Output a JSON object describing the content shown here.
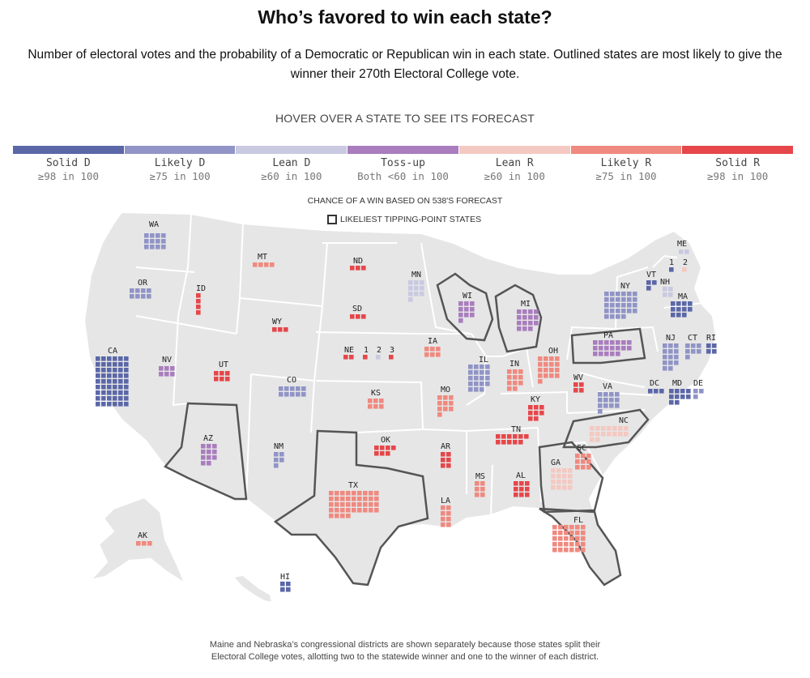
{
  "title": "Who’s favored to win each state?",
  "subtitle": "Number of electoral votes and the probability of a Democratic or Republican win in each state. Outlined states are most likely to give the winner their 270th Electoral College vote.",
  "hover_hint": "HOVER OVER A STATE TO SEE ITS FORECAST",
  "legend": [
    {
      "label": "Solid D",
      "sub": "≥98 in 100",
      "color": "#5b67a7"
    },
    {
      "label": "Likely D",
      "sub": "≥75 in 100",
      "color": "#9094c6"
    },
    {
      "label": "Lean D",
      "sub": "≥60 in 100",
      "color": "#c9c9e1"
    },
    {
      "label": "Toss-up",
      "sub": "Both <60 in 100",
      "color": "#a97dbe"
    },
    {
      "label": "Lean R",
      "sub": "≥60 in 100",
      "color": "#f4c9c2"
    },
    {
      "label": "Likely R",
      "sub": "≥75 in 100",
      "color": "#f0897f"
    },
    {
      "label": "Solid R",
      "sub": "≥98 in 100",
      "color": "#e5474a"
    }
  ],
  "chance_label": "CHANCE OF A WIN BASED ON 538'S FORECAST",
  "tipping_key": "LIKELIEST TIPPING-POINT STATES",
  "footnote": [
    "Maine and Nebraska’s congressional districts are shown separately because those states split their",
    "Electoral College votes, allotting two to the statewide winner and one to the winner of each district."
  ],
  "map_colors": {
    "land": "#e6e6e6",
    "border": "#ffffff",
    "tipping_outline": "#555555"
  },
  "states": [
    {
      "abbr": "WA",
      "ev": 12,
      "rating": "Likely D",
      "tipping": false
    },
    {
      "abbr": "OR",
      "ev": 8,
      "rating": "Likely D",
      "tipping": false
    },
    {
      "abbr": "CA",
      "ev": 54,
      "rating": "Solid D",
      "tipping": false
    },
    {
      "abbr": "NV",
      "ev": 6,
      "rating": "Toss-up",
      "tipping": false
    },
    {
      "abbr": "ID",
      "ev": 4,
      "rating": "Solid R",
      "tipping": false
    },
    {
      "abbr": "MT",
      "ev": 4,
      "rating": "Likely R",
      "tipping": false
    },
    {
      "abbr": "WY",
      "ev": 3,
      "rating": "Solid R",
      "tipping": false
    },
    {
      "abbr": "UT",
      "ev": 6,
      "rating": "Solid R",
      "tipping": false
    },
    {
      "abbr": "AZ",
      "ev": 11,
      "rating": "Toss-up",
      "tipping": true
    },
    {
      "abbr": "CO",
      "ev": 10,
      "rating": "Likely D",
      "tipping": false
    },
    {
      "abbr": "NM",
      "ev": 5,
      "rating": "Likely D",
      "tipping": false
    },
    {
      "abbr": "ND",
      "ev": 3,
      "rating": "Solid R",
      "tipping": false
    },
    {
      "abbr": "SD",
      "ev": 3,
      "rating": "Solid R",
      "tipping": false
    },
    {
      "abbr": "NE",
      "ev": 2,
      "rating": "Solid R",
      "tipping": false
    },
    {
      "abbr": "1",
      "ev": 1,
      "rating": "Solid R",
      "tipping": false
    },
    {
      "abbr": "2",
      "ev": 1,
      "rating": "Lean D",
      "tipping": false
    },
    {
      "abbr": "3",
      "ev": 1,
      "rating": "Solid R",
      "tipping": false
    },
    {
      "abbr": "KS",
      "ev": 6,
      "rating": "Likely R",
      "tipping": false
    },
    {
      "abbr": "OK",
      "ev": 7,
      "rating": "Solid R",
      "tipping": false
    },
    {
      "abbr": "TX",
      "ev": 40,
      "rating": "Likely R",
      "tipping": true
    },
    {
      "abbr": "MN",
      "ev": 10,
      "rating": "Lean D",
      "tipping": false
    },
    {
      "abbr": "IA",
      "ev": 6,
      "rating": "Likely R",
      "tipping": false
    },
    {
      "abbr": "MO",
      "ev": 10,
      "rating": "Likely R",
      "tipping": false
    },
    {
      "abbr": "AR",
      "ev": 6,
      "rating": "Solid R",
      "tipping": false
    },
    {
      "abbr": "LA",
      "ev": 8,
      "rating": "Likely R",
      "tipping": false
    },
    {
      "abbr": "WI",
      "ev": 10,
      "rating": "Toss-up",
      "tipping": true
    },
    {
      "abbr": "IL",
      "ev": 19,
      "rating": "Likely D",
      "tipping": false
    },
    {
      "abbr": "MI",
      "ev": 15,
      "rating": "Toss-up",
      "tipping": true
    },
    {
      "abbr": "IN",
      "ev": 11,
      "rating": "Likely R",
      "tipping": false
    },
    {
      "abbr": "OH",
      "ev": 17,
      "rating": "Likely R",
      "tipping": false
    },
    {
      "abbr": "KY",
      "ev": 8,
      "rating": "Solid R",
      "tipping": false
    },
    {
      "abbr": "TN",
      "ev": 11,
      "rating": "Solid R",
      "tipping": false
    },
    {
      "abbr": "MS",
      "ev": 6,
      "rating": "Likely R",
      "tipping": false
    },
    {
      "abbr": "AL",
      "ev": 9,
      "rating": "Solid R",
      "tipping": false
    },
    {
      "abbr": "GA",
      "ev": 16,
      "rating": "Lean R",
      "tipping": true
    },
    {
      "abbr": "FL",
      "ev": 30,
      "rating": "Likely R",
      "tipping": true
    },
    {
      "abbr": "SC",
      "ev": 9,
      "rating": "Likely R",
      "tipping": false
    },
    {
      "abbr": "NC",
      "ev": 16,
      "rating": "Lean R",
      "tipping": true
    },
    {
      "abbr": "VA",
      "ev": 13,
      "rating": "Likely D",
      "tipping": false
    },
    {
      "abbr": "WV",
      "ev": 4,
      "rating": "Solid R",
      "tipping": false
    },
    {
      "abbr": "PA",
      "ev": 19,
      "rating": "Toss-up",
      "tipping": true
    },
    {
      "abbr": "NY",
      "ev": 28,
      "rating": "Likely D",
      "tipping": false
    },
    {
      "abbr": "VT",
      "ev": 3,
      "rating": "Solid D",
      "tipping": false
    },
    {
      "abbr": "NH",
      "ev": 4,
      "rating": "Lean D",
      "tipping": false
    },
    {
      "abbr": "ME",
      "ev": 2,
      "rating": "Lean D",
      "tipping": false
    },
    {
      "abbr": "1",
      "ev": 1,
      "rating": "Solid D",
      "tipping": false
    },
    {
      "abbr": "2",
      "ev": 1,
      "rating": "Lean R",
      "tipping": false
    },
    {
      "abbr": "MA",
      "ev": 11,
      "rating": "Solid D",
      "tipping": false
    },
    {
      "abbr": "RI",
      "ev": 4,
      "rating": "Solid D",
      "tipping": false
    },
    {
      "abbr": "CT",
      "ev": 7,
      "rating": "Likely D",
      "tipping": false
    },
    {
      "abbr": "NJ",
      "ev": 14,
      "rating": "Likely D",
      "tipping": false
    },
    {
      "abbr": "DE",
      "ev": 3,
      "rating": "Likely D",
      "tipping": false
    },
    {
      "abbr": "MD",
      "ev": 10,
      "rating": "Solid D",
      "tipping": false
    },
    {
      "abbr": "DC",
      "ev": 3,
      "rating": "Solid D",
      "tipping": false
    },
    {
      "abbr": "AK",
      "ev": 3,
      "rating": "Likely R",
      "tipping": false
    },
    {
      "abbr": "HI",
      "ev": 4,
      "rating": "Solid D",
      "tipping": false
    }
  ]
}
